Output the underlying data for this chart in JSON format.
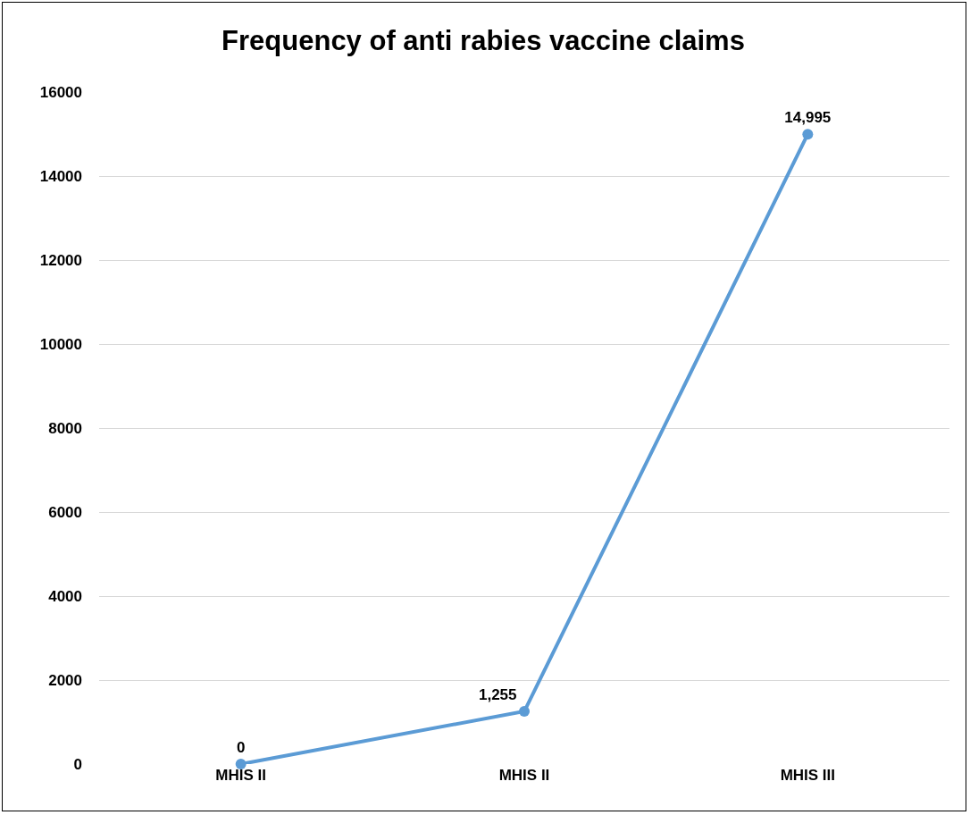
{
  "chart_data": {
    "type": "line",
    "title": "Frequency of anti rabies vaccine claims",
    "categories": [
      "MHIS II",
      "MHIS II",
      "MHIS III"
    ],
    "series": [
      {
        "color": "#5b9bd5",
        "values": [
          0,
          1255,
          14995
        ],
        "value_labels": [
          "0",
          "1,255",
          "14,995"
        ]
      }
    ],
    "ylim": [
      0,
      16000
    ],
    "yticks": [
      0,
      2000,
      4000,
      6000,
      8000,
      10000,
      12000,
      14000,
      16000
    ],
    "grid": "y",
    "legend": false,
    "marker": "circle",
    "line_style": "solid"
  }
}
